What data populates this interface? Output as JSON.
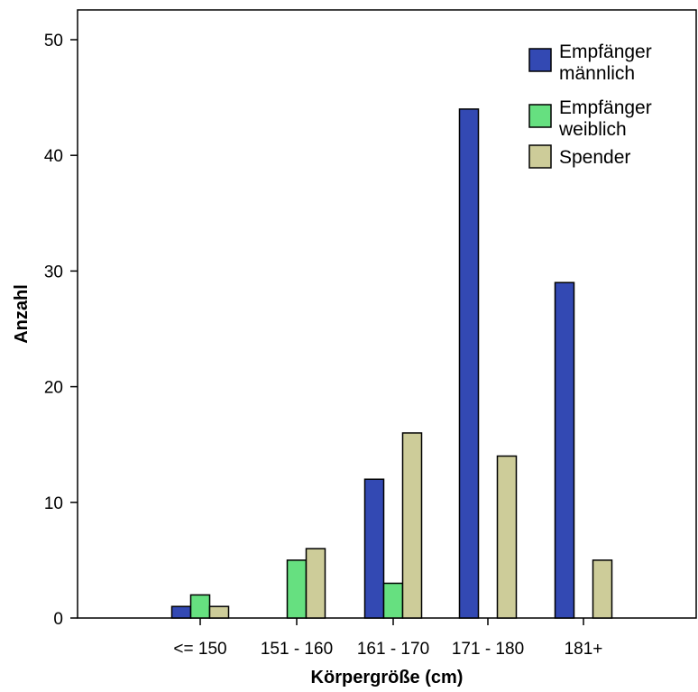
{
  "chart_data": {
    "type": "bar",
    "title": "",
    "xlabel": "Körpergröße (cm)",
    "ylabel": "Anzahl",
    "categories": [
      "<= 150",
      "151 - 160",
      "161 - 170",
      "171 - 180",
      "181+"
    ],
    "series": [
      {
        "name_lines": [
          "Empfänger",
          "männlich"
        ],
        "color": "#3349b3",
        "values": [
          1,
          0,
          12,
          44,
          29
        ]
      },
      {
        "name_lines": [
          "Empfänger",
          "weiblich"
        ],
        "color": "#66e080",
        "values": [
          2,
          5,
          3,
          0,
          0
        ]
      },
      {
        "name_lines": [
          "Spender"
        ],
        "color": "#cdcc99",
        "values": [
          1,
          6,
          16,
          14,
          5
        ]
      }
    ],
    "ylim": [
      0,
      50
    ],
    "yticks": [
      0,
      10,
      20,
      30,
      40,
      50
    ],
    "grid": false,
    "legend_position": "top-right"
  }
}
